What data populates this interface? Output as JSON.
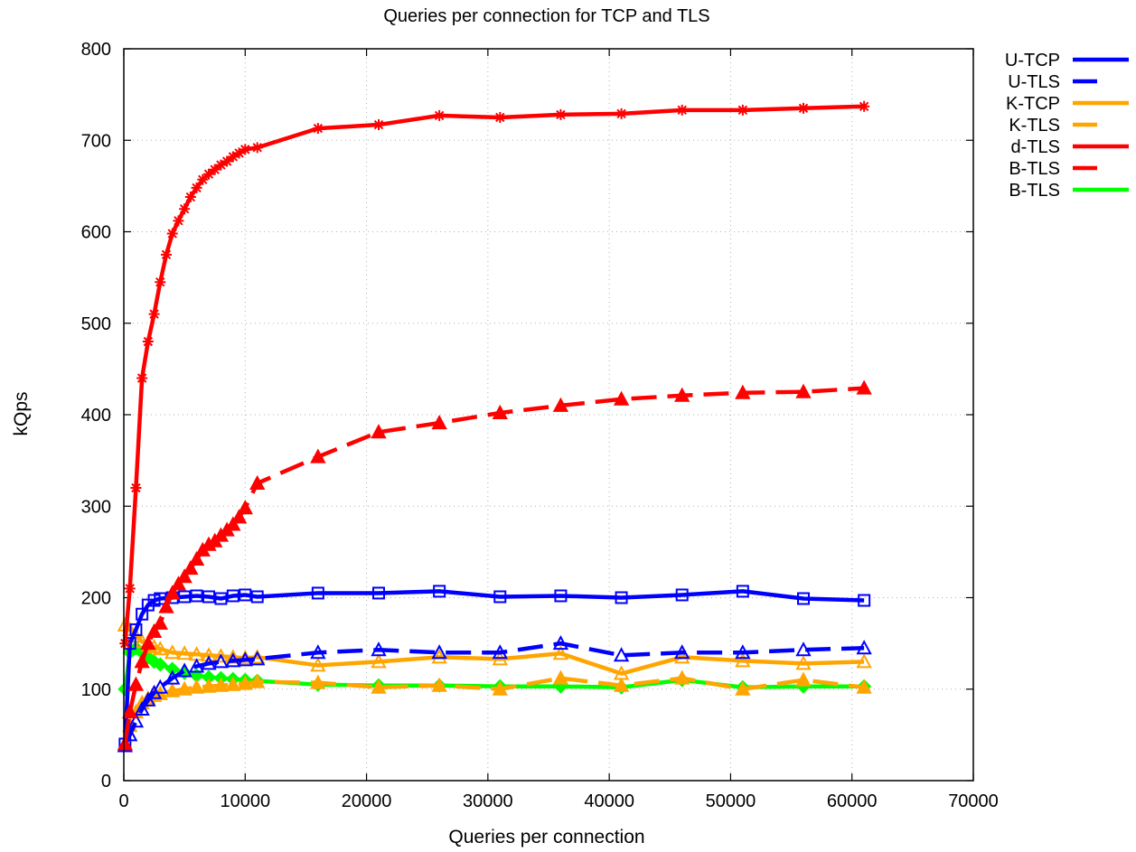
{
  "chart_data": {
    "type": "line",
    "title": "Queries per connection for TCP and TLS",
    "xlabel": "Queries per connection",
    "ylabel": "kQps",
    "xlim": [
      0,
      70000
    ],
    "ylim": [
      0,
      800
    ],
    "xticks": [
      0,
      10000,
      20000,
      30000,
      40000,
      50000,
      60000,
      70000
    ],
    "yticks": [
      0,
      100,
      200,
      300,
      400,
      500,
      600,
      700,
      800
    ],
    "grid": true,
    "legend_position": "outside-top-right",
    "series": [
      {
        "name": "U-TCP",
        "color": "#0000ff",
        "dash": "solid",
        "marker": "open-square",
        "x": [
          100,
          500,
          1000,
          1500,
          2000,
          2500,
          3000,
          4000,
          5000,
          6000,
          7000,
          8000,
          9000,
          10000,
          11000,
          16000,
          21000,
          26000,
          31000,
          36000,
          41000,
          46000,
          51000,
          56000,
          61000
        ],
        "y": [
          40,
          150,
          165,
          182,
          192,
          197,
          199,
          200,
          201,
          202,
          201,
          199,
          202,
          203,
          201,
          205,
          205,
          207,
          201,
          202,
          200,
          203,
          207,
          199,
          197
        ]
      },
      {
        "name": "U-TLS",
        "color": "#0000ff",
        "dash": "dashed",
        "marker": "open-triangle",
        "x": [
          100,
          500,
          1000,
          1500,
          2000,
          2500,
          3000,
          4000,
          5000,
          6000,
          7000,
          8000,
          9000,
          10000,
          11000,
          16000,
          21000,
          26000,
          31000,
          36000,
          41000,
          46000,
          51000,
          56000,
          61000
        ],
        "y": [
          38,
          50,
          65,
          78,
          88,
          96,
          102,
          112,
          120,
          125,
          128,
          130,
          131,
          132,
          133,
          140,
          143,
          140,
          140,
          150,
          137,
          140,
          140,
          143,
          145
        ]
      },
      {
        "name": "K-TCP",
        "color": "#ffa500",
        "dash": "solid",
        "marker": "open-triangle",
        "x": [
          100,
          500,
          1000,
          1500,
          2000,
          2500,
          3000,
          4000,
          5000,
          6000,
          7000,
          8000,
          9000,
          10000,
          11000,
          16000,
          21000,
          26000,
          31000,
          36000,
          41000,
          46000,
          51000,
          56000,
          61000
        ],
        "y": [
          170,
          165,
          158,
          152,
          148,
          146,
          144,
          140,
          139,
          138,
          137,
          136,
          135,
          134,
          135,
          126,
          130,
          135,
          133,
          139,
          117,
          135,
          131,
          128,
          130
        ]
      },
      {
        "name": "K-TLS",
        "color": "#ffa500",
        "dash": "dashed",
        "marker": "triangle",
        "x": [
          100,
          500,
          1000,
          1500,
          2000,
          2500,
          3000,
          4000,
          5000,
          6000,
          7000,
          8000,
          9000,
          10000,
          11000,
          16000,
          21000,
          26000,
          31000,
          36000,
          41000,
          46000,
          51000,
          56000,
          61000
        ],
        "y": [
          40,
          60,
          75,
          85,
          90,
          93,
          95,
          98,
          100,
          102,
          103,
          104,
          105,
          106,
          108,
          107,
          102,
          104,
          100,
          112,
          104,
          112,
          100,
          110,
          102
        ]
      },
      {
        "name": "d-TLS",
        "color": "#ff0000",
        "dash": "solid",
        "marker": "star",
        "x": [
          100,
          500,
          1000,
          1500,
          2000,
          2500,
          3000,
          3500,
          4000,
          4500,
          5000,
          5500,
          6000,
          6500,
          7000,
          7500,
          8000,
          8500,
          9000,
          9500,
          10000,
          11000,
          16000,
          21000,
          26000,
          31000,
          36000,
          41000,
          46000,
          51000,
          56000,
          61000
        ],
        "y": [
          150,
          210,
          320,
          440,
          480,
          510,
          545,
          575,
          598,
          612,
          625,
          638,
          648,
          657,
          663,
          668,
          673,
          677,
          682,
          686,
          690,
          692,
          713,
          717,
          727,
          725,
          728,
          729,
          733,
          733,
          735,
          737
        ]
      },
      {
        "name": "B-TLS",
        "color": "#ff0000",
        "dash": "dashed",
        "marker": "triangle",
        "x": [
          100,
          500,
          1000,
          1500,
          2000,
          2500,
          3000,
          3500,
          4000,
          4500,
          5000,
          5500,
          6000,
          6500,
          7000,
          7500,
          8000,
          8500,
          9000,
          9500,
          10000,
          11000,
          16000,
          21000,
          26000,
          31000,
          36000,
          41000,
          46000,
          51000,
          56000,
          61000
        ],
        "y": [
          40,
          75,
          105,
          130,
          150,
          163,
          172,
          190,
          205,
          215,
          223,
          232,
          242,
          252,
          258,
          262,
          268,
          274,
          280,
          288,
          298,
          325,
          354,
          381,
          391,
          402,
          410,
          417,
          421,
          424,
          425,
          429
        ]
      },
      {
        "name": "B-TLS",
        "color": "#00ff00",
        "dash": "solid",
        "marker": "diamond",
        "x": [
          100,
          500,
          1000,
          1500,
          2000,
          2500,
          3000,
          4000,
          5000,
          6000,
          7000,
          8000,
          9000,
          10000,
          11000,
          16000,
          21000,
          26000,
          31000,
          36000,
          41000,
          46000,
          51000,
          56000,
          61000
        ],
        "y": [
          100,
          140,
          145,
          140,
          135,
          130,
          127,
          122,
          118,
          115,
          113,
          112,
          111,
          110,
          109,
          105,
          104,
          104,
          103,
          103,
          102,
          110,
          102,
          103,
          103
        ]
      }
    ]
  }
}
